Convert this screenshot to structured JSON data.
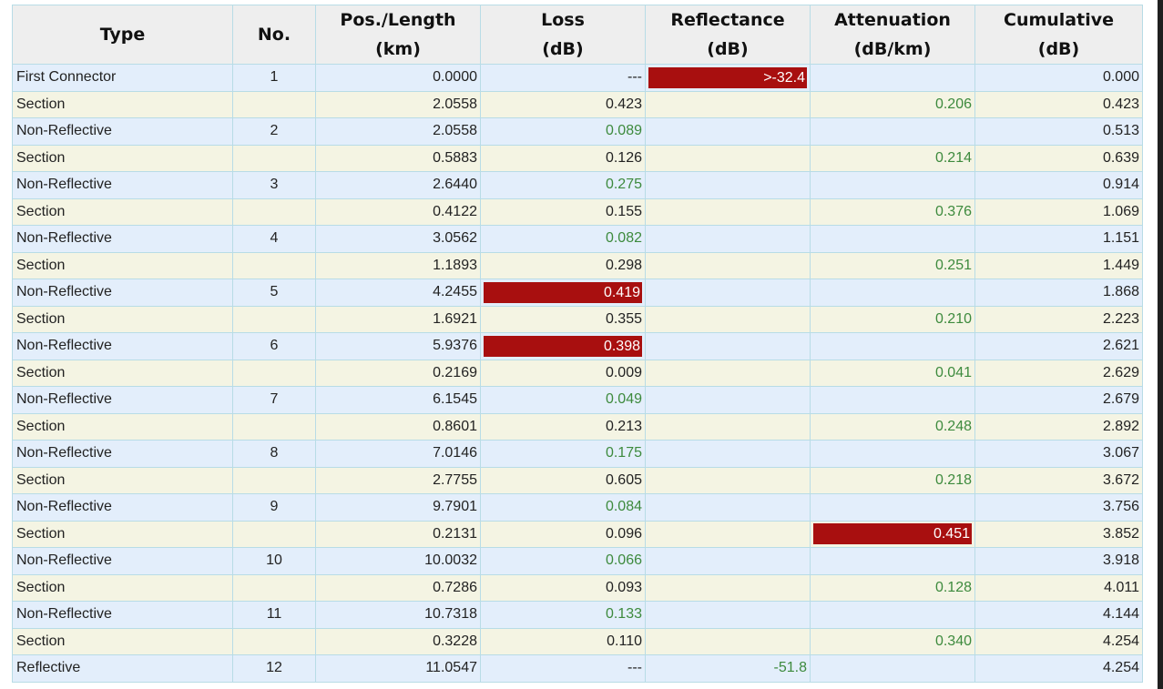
{
  "colors": {
    "header_bg": "#eeeeee",
    "row_event_bg": "#e3eefb",
    "row_section_bg": "#f4f4e3",
    "grid": "#b8dce6",
    "ok_text": "#3d8a3d",
    "flag_bg": "#a80f0f",
    "flag_text": "#ffffff"
  },
  "table": {
    "headers": [
      {
        "line1": "Type",
        "line2": ""
      },
      {
        "line1": "No.",
        "line2": ""
      },
      {
        "line1": "Pos./Length",
        "line2": "(km)"
      },
      {
        "line1": "Loss",
        "line2": "(dB)"
      },
      {
        "line1": "Reflectance",
        "line2": "(dB)"
      },
      {
        "line1": "Attenuation",
        "line2": "(dB/km)"
      },
      {
        "line1": "Cumulative",
        "line2": "(dB)"
      }
    ],
    "rows": [
      {
        "type": "First Connector",
        "no": "1",
        "pos": "0.0000",
        "loss": "---",
        "loss_style": "normal",
        "refl": ">-32.4",
        "refl_style": "flag",
        "atten": "",
        "atten_style": "normal",
        "cum": "0.000"
      },
      {
        "type": "Section",
        "no": "",
        "pos": "2.0558",
        "loss": "0.423",
        "loss_style": "normal",
        "refl": "",
        "refl_style": "normal",
        "atten": "0.206",
        "atten_style": "green",
        "cum": "0.423"
      },
      {
        "type": "Non-Reflective",
        "no": "2",
        "pos": "2.0558",
        "loss": "0.089",
        "loss_style": "green",
        "refl": "",
        "refl_style": "normal",
        "atten": "",
        "atten_style": "normal",
        "cum": "0.513"
      },
      {
        "type": "Section",
        "no": "",
        "pos": "0.5883",
        "loss": "0.126",
        "loss_style": "normal",
        "refl": "",
        "refl_style": "normal",
        "atten": "0.214",
        "atten_style": "green",
        "cum": "0.639"
      },
      {
        "type": "Non-Reflective",
        "no": "3",
        "pos": "2.6440",
        "loss": "0.275",
        "loss_style": "green",
        "refl": "",
        "refl_style": "normal",
        "atten": "",
        "atten_style": "normal",
        "cum": "0.914"
      },
      {
        "type": "Section",
        "no": "",
        "pos": "0.4122",
        "loss": "0.155",
        "loss_style": "normal",
        "refl": "",
        "refl_style": "normal",
        "atten": "0.376",
        "atten_style": "green",
        "cum": "1.069"
      },
      {
        "type": "Non-Reflective",
        "no": "4",
        "pos": "3.0562",
        "loss": "0.082",
        "loss_style": "green",
        "refl": "",
        "refl_style": "normal",
        "atten": "",
        "atten_style": "normal",
        "cum": "1.151"
      },
      {
        "type": "Section",
        "no": "",
        "pos": "1.1893",
        "loss": "0.298",
        "loss_style": "normal",
        "refl": "",
        "refl_style": "normal",
        "atten": "0.251",
        "atten_style": "green",
        "cum": "1.449"
      },
      {
        "type": "Non-Reflective",
        "no": "5",
        "pos": "4.2455",
        "loss": "0.419",
        "loss_style": "flag",
        "refl": "",
        "refl_style": "normal",
        "atten": "",
        "atten_style": "normal",
        "cum": "1.868"
      },
      {
        "type": "Section",
        "no": "",
        "pos": "1.6921",
        "loss": "0.355",
        "loss_style": "normal",
        "refl": "",
        "refl_style": "normal",
        "atten": "0.210",
        "atten_style": "green",
        "cum": "2.223"
      },
      {
        "type": "Non-Reflective",
        "no": "6",
        "pos": "5.9376",
        "loss": "0.398",
        "loss_style": "flag",
        "refl": "",
        "refl_style": "normal",
        "atten": "",
        "atten_style": "normal",
        "cum": "2.621"
      },
      {
        "type": "Section",
        "no": "",
        "pos": "0.2169",
        "loss": "0.009",
        "loss_style": "normal",
        "refl": "",
        "refl_style": "normal",
        "atten": "0.041",
        "atten_style": "green",
        "cum": "2.629"
      },
      {
        "type": "Non-Reflective",
        "no": "7",
        "pos": "6.1545",
        "loss": "0.049",
        "loss_style": "green",
        "refl": "",
        "refl_style": "normal",
        "atten": "",
        "atten_style": "normal",
        "cum": "2.679"
      },
      {
        "type": "Section",
        "no": "",
        "pos": "0.8601",
        "loss": "0.213",
        "loss_style": "normal",
        "refl": "",
        "refl_style": "normal",
        "atten": "0.248",
        "atten_style": "green",
        "cum": "2.892"
      },
      {
        "type": "Non-Reflective",
        "no": "8",
        "pos": "7.0146",
        "loss": "0.175",
        "loss_style": "green",
        "refl": "",
        "refl_style": "normal",
        "atten": "",
        "atten_style": "normal",
        "cum": "3.067"
      },
      {
        "type": "Section",
        "no": "",
        "pos": "2.7755",
        "loss": "0.605",
        "loss_style": "normal",
        "refl": "",
        "refl_style": "normal",
        "atten": "0.218",
        "atten_style": "green",
        "cum": "3.672"
      },
      {
        "type": "Non-Reflective",
        "no": "9",
        "pos": "9.7901",
        "loss": "0.084",
        "loss_style": "green",
        "refl": "",
        "refl_style": "normal",
        "atten": "",
        "atten_style": "normal",
        "cum": "3.756"
      },
      {
        "type": "Section",
        "no": "",
        "pos": "0.2131",
        "loss": "0.096",
        "loss_style": "normal",
        "refl": "",
        "refl_style": "normal",
        "atten": "0.451",
        "atten_style": "flag",
        "cum": "3.852"
      },
      {
        "type": "Non-Reflective",
        "no": "10",
        "pos": "10.0032",
        "loss": "0.066",
        "loss_style": "green",
        "refl": "",
        "refl_style": "normal",
        "atten": "",
        "atten_style": "normal",
        "cum": "3.918"
      },
      {
        "type": "Section",
        "no": "",
        "pos": "0.7286",
        "loss": "0.093",
        "loss_style": "normal",
        "refl": "",
        "refl_style": "normal",
        "atten": "0.128",
        "atten_style": "green",
        "cum": "4.011"
      },
      {
        "type": "Non-Reflective",
        "no": "11",
        "pos": "10.7318",
        "loss": "0.133",
        "loss_style": "green",
        "refl": "",
        "refl_style": "normal",
        "atten": "",
        "atten_style": "normal",
        "cum": "4.144"
      },
      {
        "type": "Section",
        "no": "",
        "pos": "0.3228",
        "loss": "0.110",
        "loss_style": "normal",
        "refl": "",
        "refl_style": "normal",
        "atten": "0.340",
        "atten_style": "green",
        "cum": "4.254"
      },
      {
        "type": "Reflective",
        "no": "12",
        "pos": "11.0547",
        "loss": "---",
        "loss_style": "normal",
        "refl": "-51.8",
        "refl_style": "green",
        "atten": "",
        "atten_style": "normal",
        "cum": "4.254"
      }
    ]
  }
}
